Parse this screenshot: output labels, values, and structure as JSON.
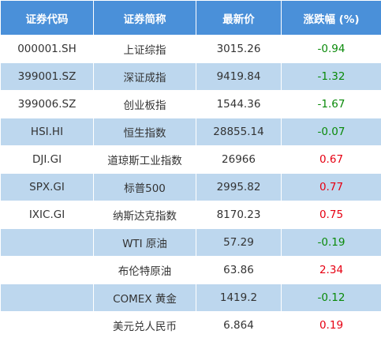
{
  "table": {
    "header": [
      "证券代码",
      "证券简称",
      "最新价",
      "涨跌幅 (%)"
    ],
    "rows": [
      [
        "000001.SH",
        "上证综指",
        "3015.26",
        "-0.94"
      ],
      [
        "399001.SZ",
        "深证成指",
        "9419.84",
        "-1.32"
      ],
      [
        "399006.SZ",
        "创业板指",
        "1544.36",
        "-1.67"
      ],
      [
        "HSI.HI",
        "恒生指数",
        "28855.14",
        "-0.07"
      ],
      [
        "DJI.GI",
        "道琼斯工业指数",
        "26966",
        "0.67"
      ],
      [
        "SPX.GI",
        "标普500",
        "2995.82",
        "0.77"
      ],
      [
        "IXIC.GI",
        "纳斯达克指数",
        "8170.23",
        "0.75"
      ],
      [
        null,
        "WTI 原油",
        "57.29",
        "-0.19"
      ],
      [
        null,
        "布伦特原油",
        "63.86",
        "2.34"
      ],
      [
        null,
        "COMEX 黄金",
        "1419.2",
        "-0.12"
      ],
      [
        null,
        "美元兑人民币",
        "6.864",
        "0.19"
      ]
    ]
  }
}
